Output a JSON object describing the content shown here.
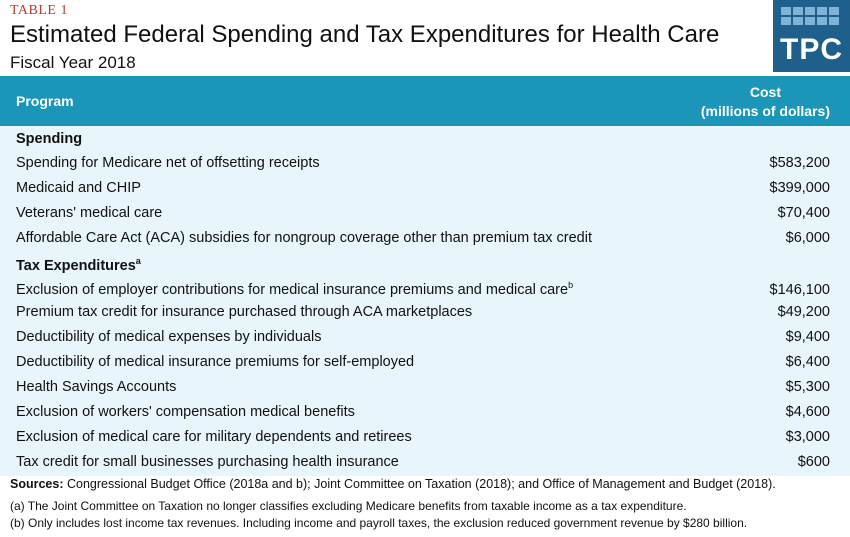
{
  "table_label": "TABLE 1",
  "title": "Estimated Federal Spending and Tax Expenditures for Health Care",
  "subtitle": "Fiscal Year 2018",
  "logo": {
    "text": "TPC",
    "icon": "tpc-grid-logo",
    "color": "#1f5f8b"
  },
  "header": {
    "program": "Program",
    "cost_line1": "Cost",
    "cost_line2": "(millions of dollars)",
    "color": "#1b95b8"
  },
  "sections": [
    {
      "title": "Spending",
      "title_sup": "",
      "rows": [
        {
          "label": "Spending for Medicare net of offsetting receipts",
          "sup": "",
          "value": "$583,200"
        },
        {
          "label": "Medicaid and CHIP",
          "sup": "",
          "value": "$399,000"
        },
        {
          "label": "Veterans' medical care",
          "sup": "",
          "value": "$70,400"
        },
        {
          "label": "Affordable Care Act (ACA) subsidies for nongroup coverage other than premium tax credit",
          "sup": "",
          "value": "$6,000"
        }
      ]
    },
    {
      "title": "Tax Expenditures",
      "title_sup": "a",
      "rows": [
        {
          "label": "Exclusion of employer contributions for medical insurance premiums and medical care",
          "sup": "b",
          "value": "$146,100"
        },
        {
          "label": "Premium tax credit for insurance purchased through ACA marketplaces",
          "sup": "",
          "value": "$49,200"
        },
        {
          "label": "Deductibility of medical expenses by individuals",
          "sup": "",
          "value": "$9,400"
        },
        {
          "label": "Deductibility of medical insurance premiums for self-employed",
          "sup": "",
          "value": "$6,400"
        },
        {
          "label": "Health Savings Accounts",
          "sup": "",
          "value": "$5,300"
        },
        {
          "label": "Exclusion of workers' compensation medical benefits",
          "sup": "",
          "value": "$4,600"
        },
        {
          "label": "Exclusion of medical care for military dependents and retirees",
          "sup": "",
          "value": "$3,000"
        },
        {
          "label": "Tax credit for small businesses purchasing health insurance",
          "sup": "",
          "value": "$600"
        }
      ]
    }
  ],
  "sources": {
    "label": "Sources:",
    "text": " Congressional Budget Office (2018a and b); Joint Committee on Taxation (2018); and Office of Management and Budget (2018)."
  },
  "notes": [
    "(a) The Joint Committee on Taxation no longer classifies excluding Medicare benefits from taxable income as a tax expenditure.",
    "(b) Only includes lost income tax revenues. Including income and payroll taxes, the exclusion reduced government revenue by $280 billion."
  ]
}
